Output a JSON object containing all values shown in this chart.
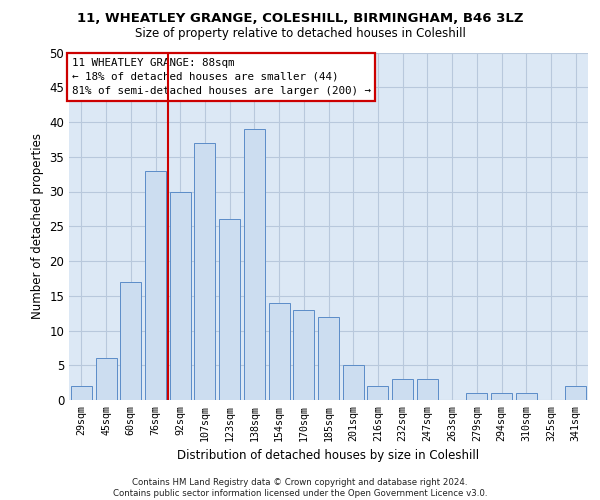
{
  "title_line1": "11, WHEATLEY GRANGE, COLESHILL, BIRMINGHAM, B46 3LZ",
  "title_line2": "Size of property relative to detached houses in Coleshill",
  "xlabel": "Distribution of detached houses by size in Coleshill",
  "ylabel": "Number of detached properties",
  "footnote_line1": "Contains HM Land Registry data © Crown copyright and database right 2024.",
  "footnote_line2": "Contains public sector information licensed under the Open Government Licence v3.0.",
  "categories": [
    "29sqm",
    "45sqm",
    "60sqm",
    "76sqm",
    "92sqm",
    "107sqm",
    "123sqm",
    "138sqm",
    "154sqm",
    "170sqm",
    "185sqm",
    "201sqm",
    "216sqm",
    "232sqm",
    "247sqm",
    "263sqm",
    "279sqm",
    "294sqm",
    "310sqm",
    "325sqm",
    "341sqm"
  ],
  "values": [
    2,
    6,
    17,
    33,
    30,
    37,
    26,
    39,
    14,
    13,
    12,
    5,
    2,
    3,
    3,
    0,
    1,
    1,
    1,
    0,
    2
  ],
  "bar_color": "#ccddf0",
  "bar_edge_color": "#5b8cc8",
  "grid_color": "#b8c8dc",
  "background_color": "#dce8f5",
  "vline_color": "#cc0000",
  "vline_x": 3.5,
  "annotation_text": "11 WHEATLEY GRANGE: 88sqm\n← 18% of detached houses are smaller (44)\n81% of semi-detached houses are larger (200) →",
  "annotation_box_facecolor": "#ffffff",
  "annotation_box_edgecolor": "#cc0000",
  "ylim_max": 50,
  "yticks": [
    0,
    5,
    10,
    15,
    20,
    25,
    30,
    35,
    40,
    45,
    50
  ]
}
